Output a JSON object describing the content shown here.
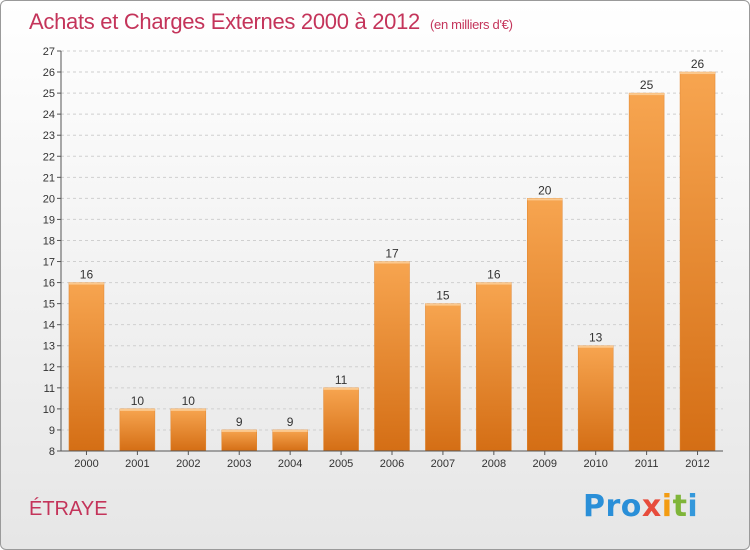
{
  "title": "Achats et Charges Externes 2000 à 2012",
  "unit": "(en milliers d'€)",
  "commune": "ÉTRAYE",
  "logo": {
    "p1": "Pro",
    "p2": "x",
    "p3": "i",
    "p4": "t",
    "p5": "i"
  },
  "colors": {
    "title": "#c4345a",
    "bar_top": "#f7a04a",
    "bar_bottom": "#d9731a",
    "grid": "#cfcfcf"
  },
  "chart_data": {
    "type": "bar",
    "title": "Achats et Charges Externes 2000 à 2012",
    "xlabel": "",
    "ylabel": "",
    "categories": [
      "2000",
      "2001",
      "2002",
      "2003",
      "2004",
      "2005",
      "2006",
      "2007",
      "2008",
      "2009",
      "2010",
      "2011",
      "2012"
    ],
    "values": [
      16,
      10,
      10,
      9,
      9,
      11,
      17,
      15,
      16,
      20,
      13,
      25,
      26
    ],
    "ylim": [
      8,
      27
    ],
    "yticks": [
      8,
      9,
      10,
      11,
      12,
      13,
      14,
      15,
      16,
      17,
      18,
      19,
      20,
      21,
      22,
      23,
      24,
      25,
      26,
      27
    ],
    "grid": true,
    "legend": "none"
  }
}
